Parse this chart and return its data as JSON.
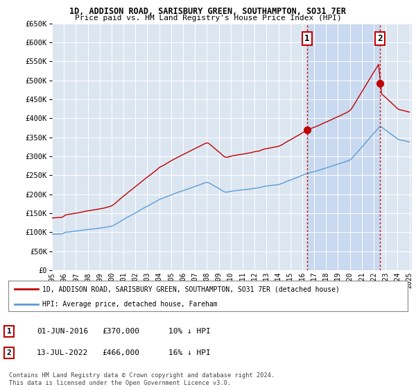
{
  "title": "1D, ADDISON ROAD, SARISBURY GREEN, SOUTHAMPTON, SO31 7ER",
  "subtitle": "Price paid vs. HM Land Registry's House Price Index (HPI)",
  "ylabel_ticks": [
    "£0",
    "£50K",
    "£100K",
    "£150K",
    "£200K",
    "£250K",
    "£300K",
    "£350K",
    "£400K",
    "£450K",
    "£500K",
    "£550K",
    "£600K",
    "£650K"
  ],
  "ytick_values": [
    0,
    50000,
    100000,
    150000,
    200000,
    250000,
    300000,
    350000,
    400000,
    450000,
    500000,
    550000,
    600000,
    650000
  ],
  "x_start_year": 1995,
  "x_end_year": 2025,
  "hpi_color": "#5b9bd5",
  "price_color": "#c00000",
  "sale1_year": 2016.42,
  "sale1_price": 370000,
  "sale2_year": 2022.54,
  "sale2_price": 466000,
  "legend_line1": "1D, ADDISON ROAD, SARISBURY GREEN, SOUTHAMPTON, SO31 7ER (detached house)",
  "legend_line2": "HPI: Average price, detached house, Fareham",
  "table_row1": [
    "1",
    "01-JUN-2016",
    "£370,000",
    "10% ↓ HPI"
  ],
  "table_row2": [
    "2",
    "13-JUL-2022",
    "£466,000",
    "16% ↓ HPI"
  ],
  "footnote": "Contains HM Land Registry data © Crown copyright and database right 2024.\nThis data is licensed under the Open Government Licence v3.0.",
  "plot_bg_color": "#dce6f1",
  "highlight_bg_color": "#c9d9ef",
  "fig_bg_color": "#ffffff"
}
